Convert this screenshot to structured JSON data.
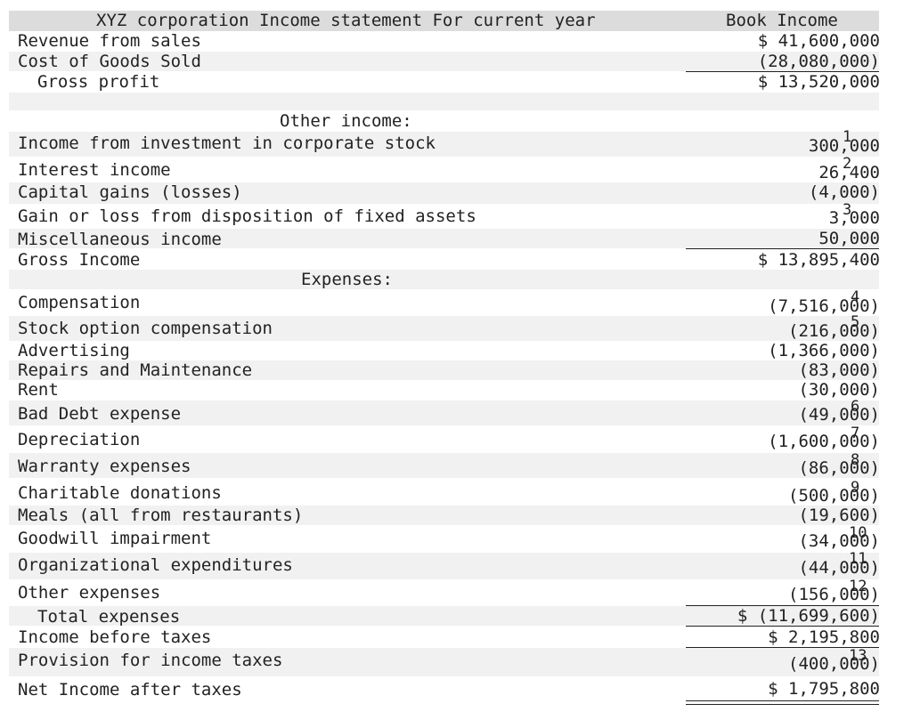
{
  "header": {
    "title": "XYZ corporation Income statement For current year",
    "column": "Book Income"
  },
  "top": [
    {
      "label": "Revenue from sales",
      "value": "$ 41,600,000"
    },
    {
      "label": "Cost of Goods Sold",
      "value": "(28,080,000)"
    },
    {
      "label": "Gross profit",
      "value": "$ 13,520,000"
    }
  ],
  "other_income": {
    "heading": "Other income:",
    "items": [
      {
        "label": "Income from investment in corporate stock",
        "value": "300,000",
        "note": "1"
      },
      {
        "label": "Interest income",
        "value": "26,400",
        "note": "2"
      },
      {
        "label": "Capital gains (losses)",
        "value": "(4,000)",
        "note": ""
      },
      {
        "label": "Gain or loss from disposition of fixed assets",
        "value": "3,000",
        "note": "3"
      },
      {
        "label": "Miscellaneous income",
        "value": "50,000",
        "note": ""
      },
      {
        "label": "Gross Income",
        "value": "$ 13,895,400",
        "note": ""
      }
    ]
  },
  "expenses": {
    "heading": "Expenses:",
    "items": [
      {
        "label": "Compensation",
        "value": "(7,516,000)",
        "note": "4"
      },
      {
        "label": "Stock option compensation",
        "value": "(216,000)",
        "note": "5"
      },
      {
        "label": "Advertising",
        "value": "(1,366,000)",
        "note": ""
      },
      {
        "label": "Repairs and Maintenance",
        "value": "(83,000)",
        "note": ""
      },
      {
        "label": "Rent",
        "value": "(30,000)",
        "note": ""
      },
      {
        "label": "Bad Debt expense",
        "value": "(49,000)",
        "note": "6"
      },
      {
        "label": "Depreciation",
        "value": "(1,600,000)",
        "note": "7"
      },
      {
        "label": "Warranty expenses",
        "value": "(86,000)",
        "note": "8"
      },
      {
        "label": "Charitable donations",
        "value": "(500,000)",
        "note": "9"
      },
      {
        "label": "Meals (all from restaurants)",
        "value": "(19,600)",
        "note": ""
      },
      {
        "label": "Goodwill impairment",
        "value": "(34,000)",
        "note": "10"
      },
      {
        "label": "Organizational expenditures",
        "value": "(44,000)",
        "note": "11"
      },
      {
        "label": "Other expenses",
        "value": "(156,000)",
        "note": "12"
      }
    ]
  },
  "totals": [
    {
      "label": "Total expenses",
      "value": "$ (11,699,600)",
      "note": ""
    },
    {
      "label": "Income before taxes",
      "value": "$ 2,195,800",
      "note": ""
    },
    {
      "label": "Provision for income taxes",
      "value": "(400,000)",
      "note": "13"
    },
    {
      "label": "Net Income after taxes",
      "value": "$ 1,795,800",
      "note": ""
    }
  ]
}
